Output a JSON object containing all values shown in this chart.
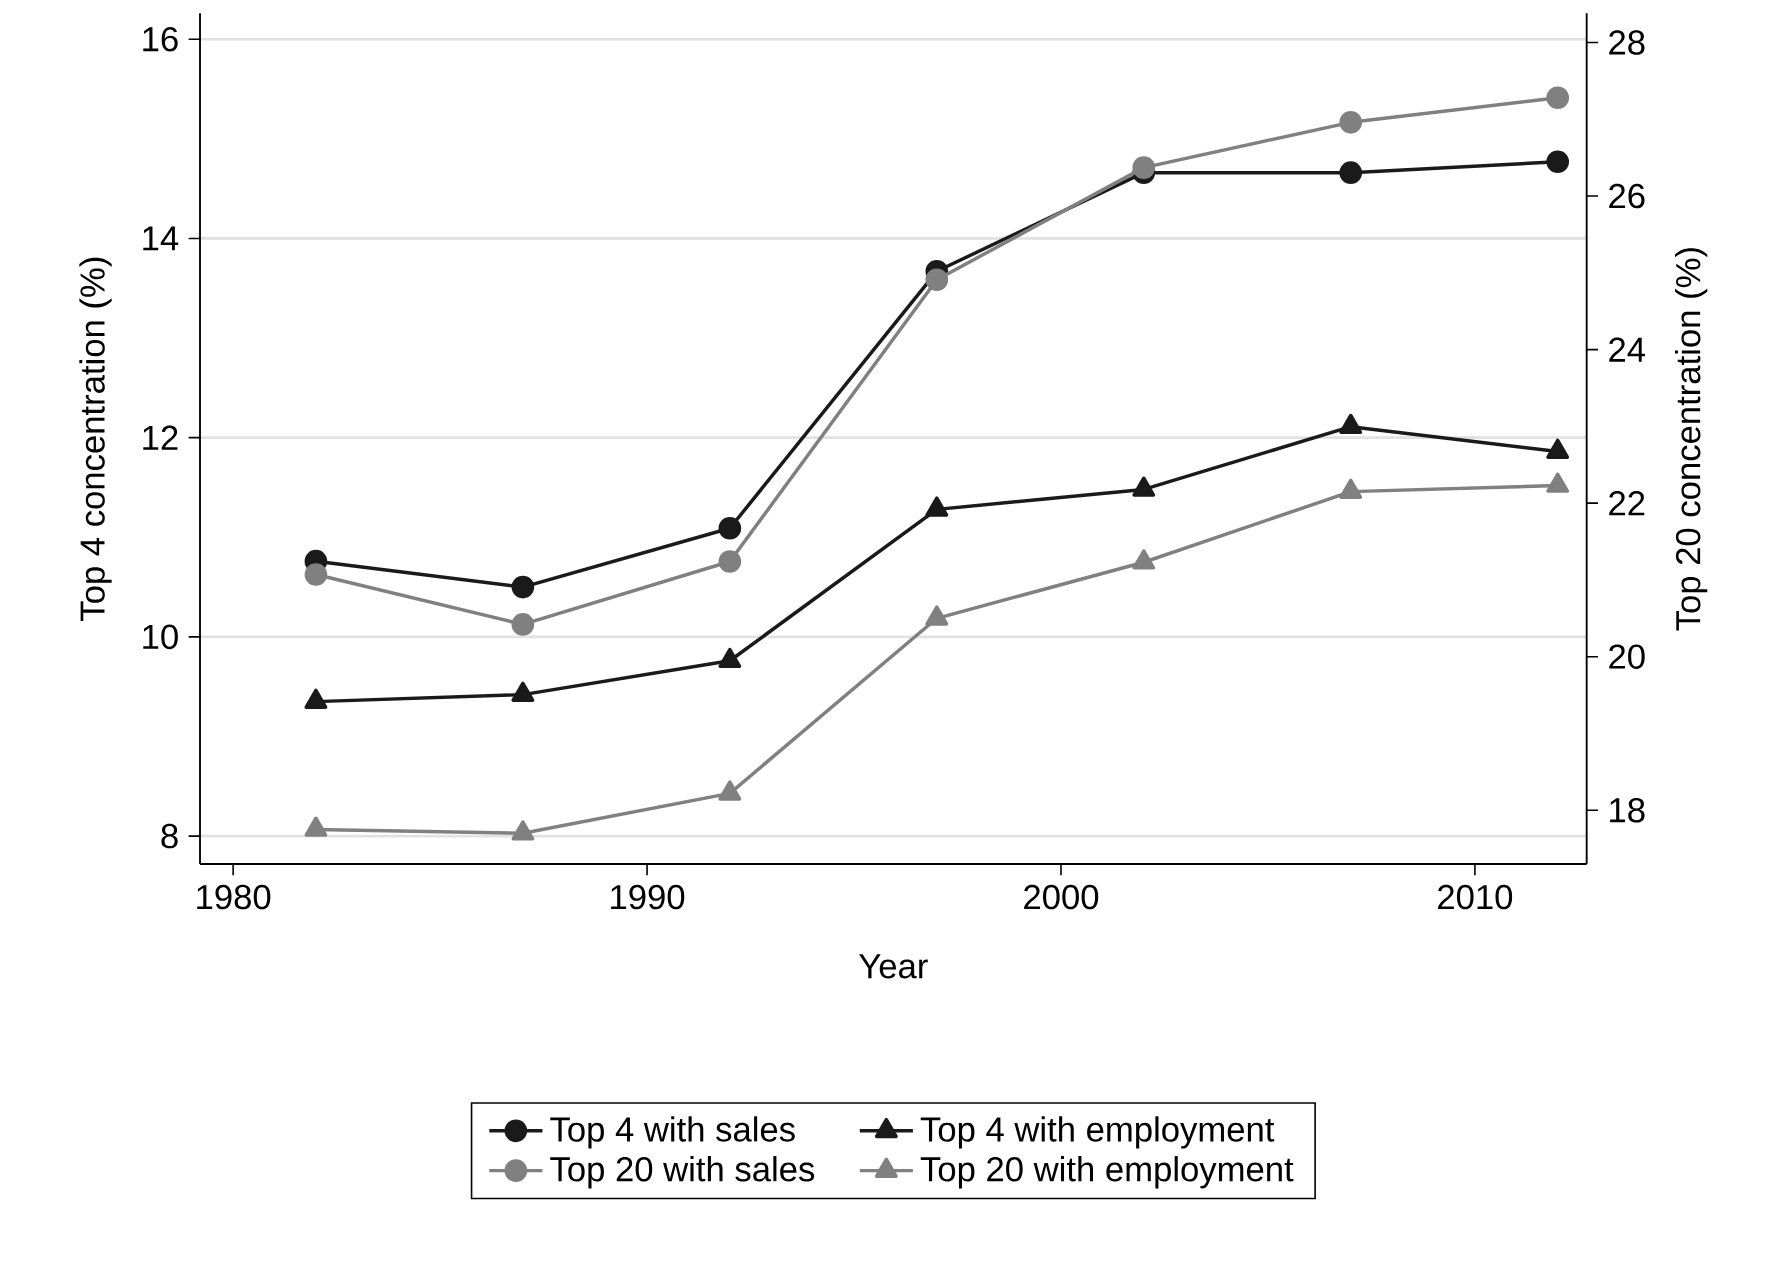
{
  "chart_data": {
    "type": "line",
    "xlabel": "Year",
    "ylabel": "Top 4 concentration (%)",
    "y2label": "Top 20 concentration (%)",
    "x": [
      1982,
      1987,
      1992,
      1997,
      2002,
      2007,
      2012
    ],
    "series": [
      {
        "name": "Top 4 with sales",
        "color": "#1a1a1a",
        "marker": "circle",
        "values": [
          10.76,
          10.5,
          11.09,
          13.67,
          14.66,
          14.66,
          14.77
        ]
      },
      {
        "name": "Top 4 with employment",
        "color": "#1a1a1a",
        "marker": "triangle",
        "values": [
          9.35,
          9.42,
          9.76,
          11.28,
          11.48,
          12.11,
          11.86
        ]
      },
      {
        "name": "Top 20 with sales",
        "color": "#808080",
        "marker": "circle",
        "axis": "y2",
        "values": [
          21.07,
          20.42,
          21.24,
          24.91,
          26.37,
          26.96,
          27.28
        ]
      },
      {
        "name": "Top 20 with employment",
        "color": "#808080",
        "marker": "triangle",
        "axis": "y2",
        "values": [
          17.75,
          17.7,
          18.22,
          20.5,
          21.23,
          22.15,
          22.23
        ]
      }
    ],
    "xlim": [
      1979.2,
      2012.7
    ],
    "xticks": [
      1980,
      1990,
      2000,
      2010
    ],
    "ylim": [
      7.72,
      16.26
    ],
    "yticks": [
      8,
      10,
      12,
      14,
      16
    ],
    "y2lim": [
      17.3,
      28.38
    ],
    "y2ticks": [
      18,
      20,
      22,
      24,
      26,
      28
    ],
    "grid": "y",
    "legend": "bottom",
    "line_style": "solid"
  }
}
